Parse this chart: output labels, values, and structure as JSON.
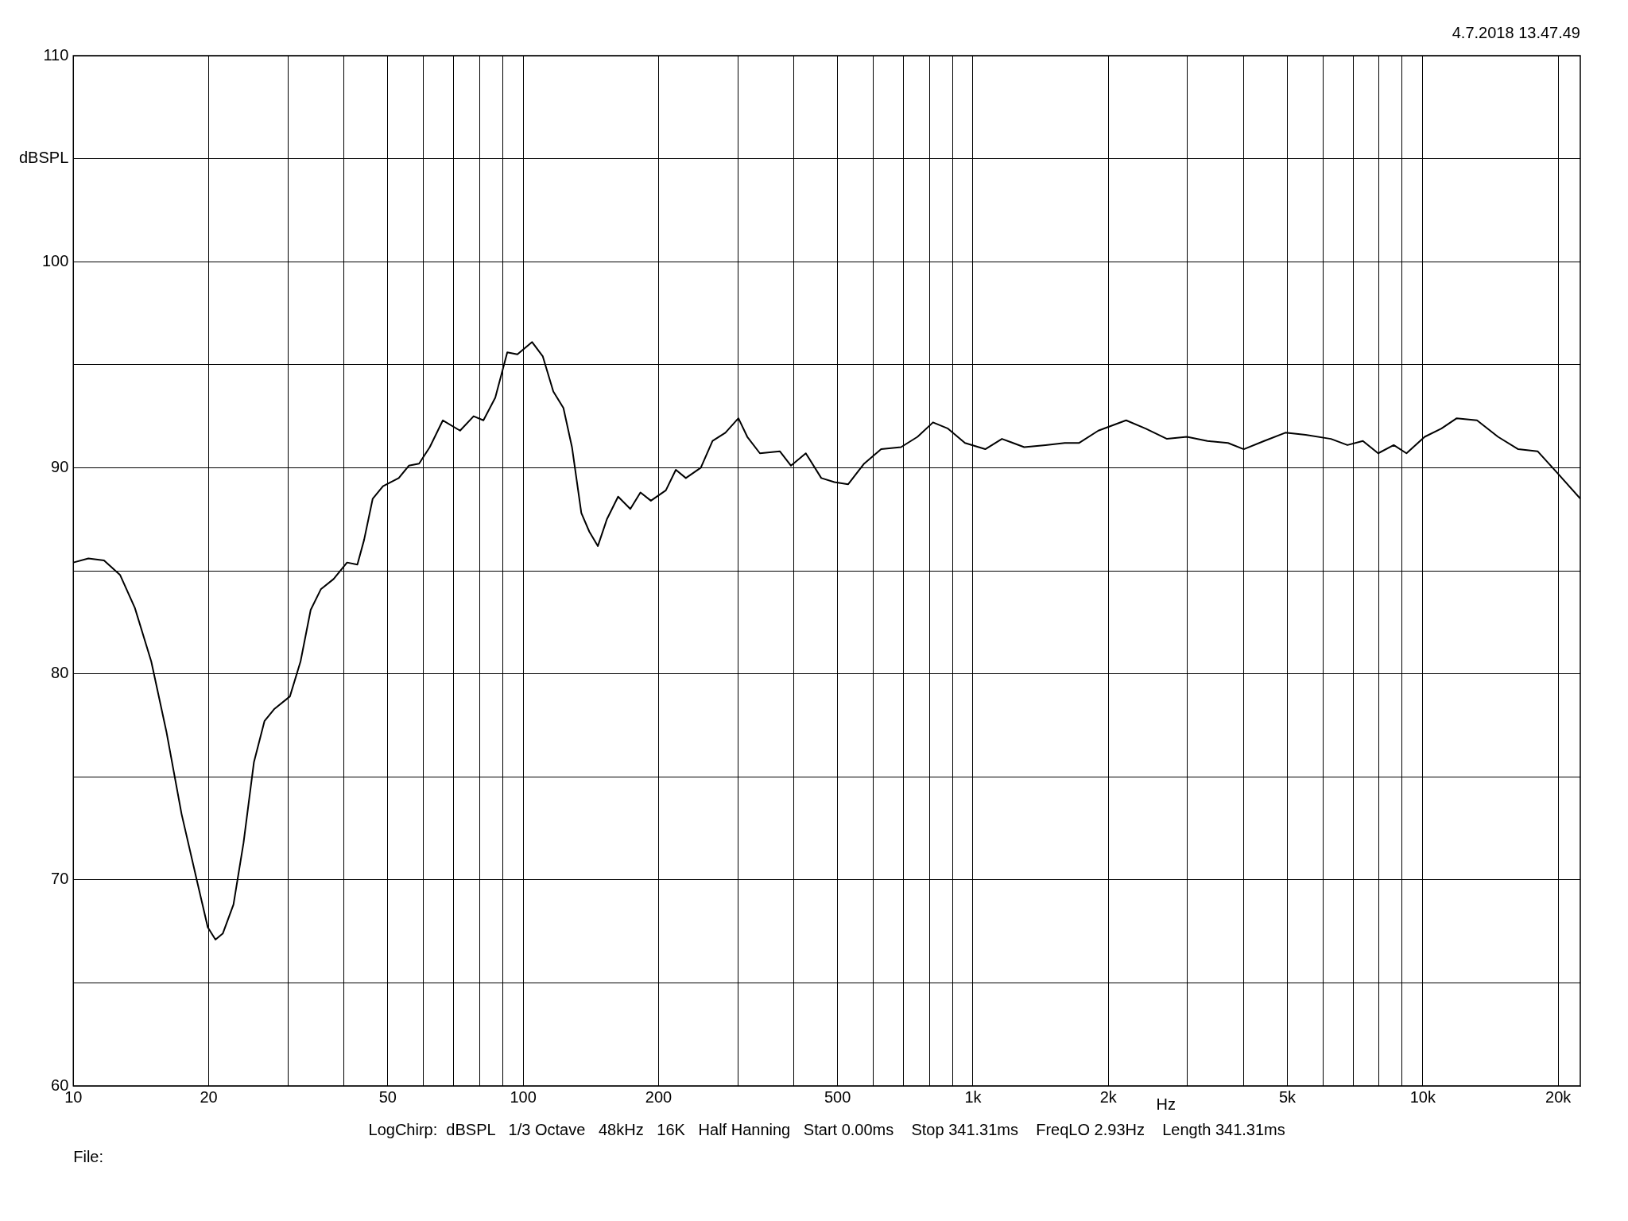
{
  "chart_data": {
    "type": "line",
    "log": "x",
    "grid": true,
    "legend": false,
    "marker": "none",
    "line_style": "solid",
    "xlabel": "Hz",
    "annotations": [
      "4.7.2018 13.47.49",
      "LogChirp:  dBSPL   1/3 Octave   48kHz   16K   Half Hanning   Start 0.00ms    Stop 341.31ms    FreqLO 2.93Hz    Length 341.31ms",
      "File:"
    ],
    "xlim": [
      10,
      22400
    ],
    "xticks": [
      10,
      20,
      {
        "value": 30,
        "label": null
      },
      {
        "value": 40,
        "label": null
      },
      50,
      {
        "value": 60,
        "label": null
      },
      {
        "value": 70,
        "label": null
      },
      {
        "value": 80,
        "label": null
      },
      {
        "value": 90,
        "label": null
      },
      100,
      200,
      {
        "value": 300,
        "label": null
      },
      {
        "value": 400,
        "label": null
      },
      500,
      {
        "value": 600,
        "label": null
      },
      {
        "value": 700,
        "label": null
      },
      {
        "value": 800,
        "label": null
      },
      {
        "value": 900,
        "label": null
      },
      {
        "value": 1000,
        "label": "1k"
      },
      {
        "value": 2000,
        "label": "2k"
      },
      {
        "value": 3000,
        "label": null
      },
      {
        "value": 4000,
        "label": null
      },
      {
        "value": 5000,
        "label": "5k"
      },
      {
        "value": 6000,
        "label": null
      },
      {
        "value": 7000,
        "label": null
      },
      {
        "value": 8000,
        "label": null
      },
      {
        "value": 9000,
        "label": null
      },
      {
        "value": 10000,
        "label": "10k"
      },
      {
        "value": 20000,
        "label": "20k"
      }
    ],
    "ylim": [
      60,
      110
    ],
    "yticks": [
      60,
      {
        "value": 65,
        "label": null
      },
      70,
      {
        "value": 75,
        "label": null
      },
      80,
      {
        "value": 85,
        "label": null
      },
      90,
      {
        "value": 95,
        "label": null
      },
      100,
      {
        "value": 105,
        "label": "dBSPL"
      },
      110
    ],
    "series": [
      {
        "color": "#000000",
        "x": [
          10,
          10.8,
          11.7,
          12.7,
          13.7,
          14.9,
          16.1,
          17.4,
          18.9,
          19.9,
          20.7,
          21.5,
          22.7,
          23.9,
          25.2,
          26.6,
          28.0,
          30.3,
          32.0,
          33.7,
          35.5,
          37.9,
          40.6,
          42.8,
          44.3,
          46.3,
          48.8,
          52.9,
          55.7,
          58.7,
          62.0,
          66.3,
          72.4,
          77.6,
          81.6,
          86.7,
          92.2,
          97.1,
          104.7,
          110.6,
          116.7,
          122.9,
          128.4,
          134.7,
          140.3,
          146.6,
          153.5,
          162.6,
          173.1,
          182.3,
          192.3,
          207.6,
          218.5,
          230,
          248.3,
          263.7,
          281.6,
          301,
          315,
          336,
          372,
          394,
          425,
          460,
          492,
          528,
          573,
          625,
          692,
          753,
          815,
          880,
          960,
          1065,
          1160,
          1300,
          1450,
          1600,
          1720,
          1900,
          2190,
          2420,
          2700,
          2990,
          3320,
          3690,
          4000,
          4440,
          4950,
          5490,
          6250,
          6800,
          7360,
          7960,
          8620,
          9200,
          10100,
          11000,
          11900,
          13200,
          14700,
          16300,
          18000,
          20000,
          22400
        ],
        "values": [
          85.4,
          85.6,
          85.5,
          84.8,
          83.2,
          80.6,
          77.2,
          73.2,
          69.8,
          67.7,
          67.1,
          67.4,
          68.8,
          71.8,
          75.7,
          77.7,
          78.3,
          78.9,
          80.6,
          83.1,
          84.1,
          84.6,
          85.4,
          85.3,
          86.5,
          88.5,
          89.1,
          89.5,
          90.1,
          90.2,
          91.0,
          92.3,
          91.8,
          92.5,
          92.3,
          93.4,
          95.6,
          95.5,
          96.1,
          95.4,
          93.7,
          92.9,
          91.0,
          87.8,
          86.9,
          86.2,
          87.5,
          88.6,
          88.0,
          88.8,
          88.4,
          88.9,
          89.9,
          89.5,
          90.0,
          91.3,
          91.7,
          92.4,
          91.5,
          90.7,
          90.8,
          90.1,
          90.7,
          89.5,
          89.3,
          89.2,
          90.2,
          90.9,
          91.0,
          91.5,
          92.2,
          91.9,
          91.2,
          90.9,
          91.4,
          91.0,
          91.1,
          91.2,
          91.2,
          91.8,
          92.3,
          91.9,
          91.4,
          91.5,
          91.3,
          91.2,
          90.9,
          91.3,
          91.7,
          91.6,
          91.4,
          91.1,
          91.3,
          90.7,
          91.1,
          90.7,
          91.5,
          91.9,
          92.4,
          92.3,
          91.5,
          90.9,
          90.8,
          89.7,
          88.5
        ]
      }
    ]
  }
}
